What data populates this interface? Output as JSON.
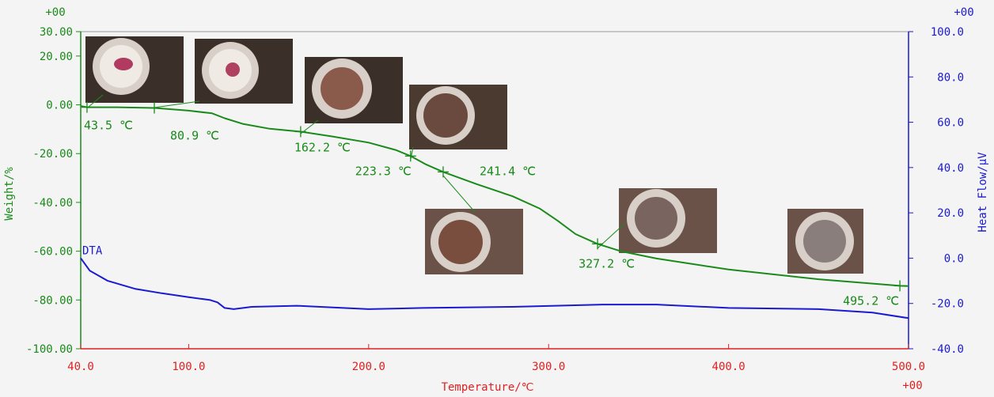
{
  "chart_data": {
    "type": "line",
    "xlabel": "Temperature/℃",
    "ylabel_left": "Weight/%",
    "ylabel_right": "Heat Flow/μV",
    "exponent_labels": [
      "+00",
      "+00",
      "+00"
    ],
    "xlim": [
      40,
      500
    ],
    "ylim_left": [
      -100,
      30
    ],
    "ylim_right": [
      -40,
      100
    ],
    "x_ticks": [
      "40.0",
      "100.0",
      "200.0",
      "300.0",
      "400.0",
      "500.0"
    ],
    "y_left_ticks": [
      "30.00",
      "20.00",
      "0.00",
      "-20.00",
      "-40.00",
      "-60.00",
      "-80.00",
      "-100.00"
    ],
    "y_right_ticks": [
      "100.0",
      "80.0",
      "60.0",
      "40.0",
      "20.0",
      "0.0",
      "-20.0",
      "-40.0"
    ],
    "colors": {
      "tg": "#1a8a1a",
      "dta": "#1a1ad2",
      "axis_x": "#e02020",
      "axis_left": "#1a8a1a",
      "axis_right": "#1a1ad2"
    },
    "series": [
      {
        "name": "",
        "axis": "left",
        "x": [
          40,
          43.5,
          60,
          80.9,
          100,
          113,
          120,
          130,
          145,
          162.2,
          180,
          200,
          215,
          223.3,
          232,
          241.4,
          260,
          280,
          295,
          305,
          315,
          327.2,
          340,
          360,
          400,
          450,
          495.2,
          500
        ],
        "y": [
          -0.5,
          -1.0,
          -1.0,
          -1.3,
          -2.4,
          -3.5,
          -5.5,
          -7.8,
          -9.8,
          -11.0,
          -13.0,
          -15.5,
          -18.5,
          -21.0,
          -24.5,
          -27.5,
          -32.5,
          -37.5,
          -42.5,
          -47.5,
          -53.0,
          -57.0,
          -60.0,
          -63.0,
          -67.5,
          -71.5,
          -74.2,
          -74.3
        ]
      },
      {
        "name": "DTA",
        "axis": "right",
        "x": [
          40,
          45,
          55,
          70,
          85,
          100,
          112,
          116,
          120,
          125,
          135,
          160,
          200,
          230,
          280,
          330,
          360,
          400,
          450,
          480,
          500
        ],
        "y": [
          0.0,
          -5.5,
          -10.0,
          -13.5,
          -15.5,
          -17.2,
          -18.5,
          -19.5,
          -22.0,
          -22.5,
          -21.5,
          -21.0,
          -22.5,
          -22.0,
          -21.5,
          -20.5,
          -20.5,
          -22.0,
          -22.5,
          -24.0,
          -26.5
        ]
      }
    ],
    "annotations": [
      {
        "label": "43.5 ℃",
        "x": 43.5,
        "y": -1.0
      },
      {
        "label": "80.9 ℃",
        "x": 80.9,
        "y": -1.3
      },
      {
        "label": "162.2 ℃",
        "x": 162.2,
        "y": -11.0
      },
      {
        "label": "223.3 ℃",
        "x": 223.3,
        "y": -21.0
      },
      {
        "label": "241.4 ℃",
        "x": 241.4,
        "y": -27.5
      },
      {
        "label": "327.2 ℃",
        "x": 327.2,
        "y": -57.0
      },
      {
        "label": "495.2 ℃",
        "x": 495.2,
        "y": -74.2
      }
    ]
  }
}
